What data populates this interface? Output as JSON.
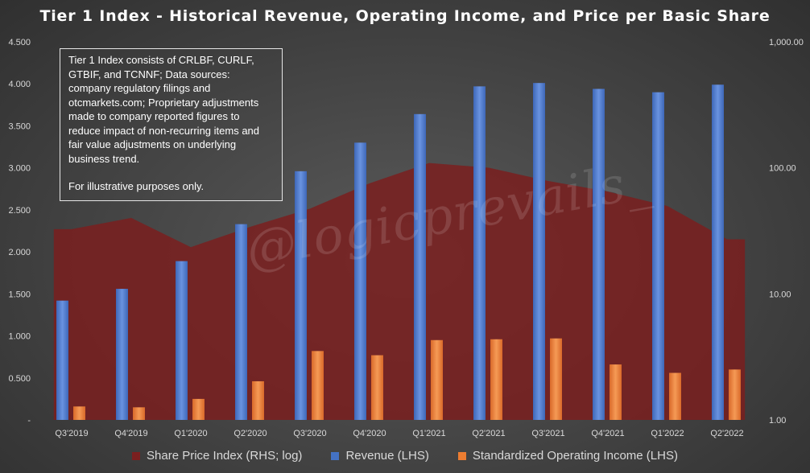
{
  "title": "Tier 1 Index - Historical Revenue, Operating Income, and Price per Basic Share",
  "note": {
    "line1": "Tier 1 Index consists of CRLBF, CURLF, GTBIF, and TCNNF; Data sources: company regulatory filings and otcmarkets.com; Proprietary adjustments made to company reported figures to reduce impact of non-recurring items and fair value adjustments on underlying business trend.",
    "line2": "For illustrative purposes only."
  },
  "watermark": "@logicprevails_",
  "colors": {
    "revenue": "#4472c4",
    "operating_income": "#ed7d31",
    "share_price": "#7a1f1f"
  },
  "chart_data": {
    "type": "bar",
    "title": "Tier 1 Index - Historical Revenue, Operating Income, and Price per Basic Share",
    "categories": [
      "Q3'2019",
      "Q4'2019",
      "Q1'2020",
      "Q2'2020",
      "Q3'2020",
      "Q4'2020",
      "Q1'2021",
      "Q2'2021",
      "Q3'2021",
      "Q4'2021",
      "Q1'2022",
      "Q2'2022"
    ],
    "left_axis": {
      "ylim": [
        0,
        4.5
      ],
      "ticks": [
        "-",
        "0.500",
        "1.000",
        "1.500",
        "2.000",
        "2.500",
        "3.000",
        "3.500",
        "4.000",
        "4.500"
      ],
      "tick_values": [
        0,
        0.5,
        1.0,
        1.5,
        2.0,
        2.5,
        3.0,
        3.5,
        4.0,
        4.5
      ]
    },
    "right_axis": {
      "scale": "log",
      "ylim": [
        1,
        1000
      ],
      "ticks": [
        "1.00",
        "10.00",
        "100.00",
        "1,000.00"
      ],
      "tick_values": [
        1,
        10,
        100,
        1000
      ]
    },
    "series": [
      {
        "name": "Share Price Index (RHS; log)",
        "type": "area",
        "axis": "right",
        "values": [
          32.6,
          40.1,
          23.5,
          34.1,
          47.5,
          75.4,
          109.3,
          100.3,
          78.7,
          64.8,
          49.8,
          27.1
        ]
      },
      {
        "name": "Revenue (LHS)",
        "type": "bar",
        "axis": "left",
        "values": [
          1.42,
          1.56,
          1.89,
          2.33,
          2.96,
          3.3,
          3.64,
          3.97,
          4.01,
          3.94,
          3.9,
          3.99
        ]
      },
      {
        "name": "Standardized Operating Income (LHS)",
        "type": "bar",
        "axis": "left",
        "values": [
          0.16,
          0.15,
          0.25,
          0.46,
          0.82,
          0.77,
          0.95,
          0.96,
          0.97,
          0.66,
          0.56,
          0.6
        ]
      }
    ],
    "grid": false,
    "legend": "bottom"
  }
}
